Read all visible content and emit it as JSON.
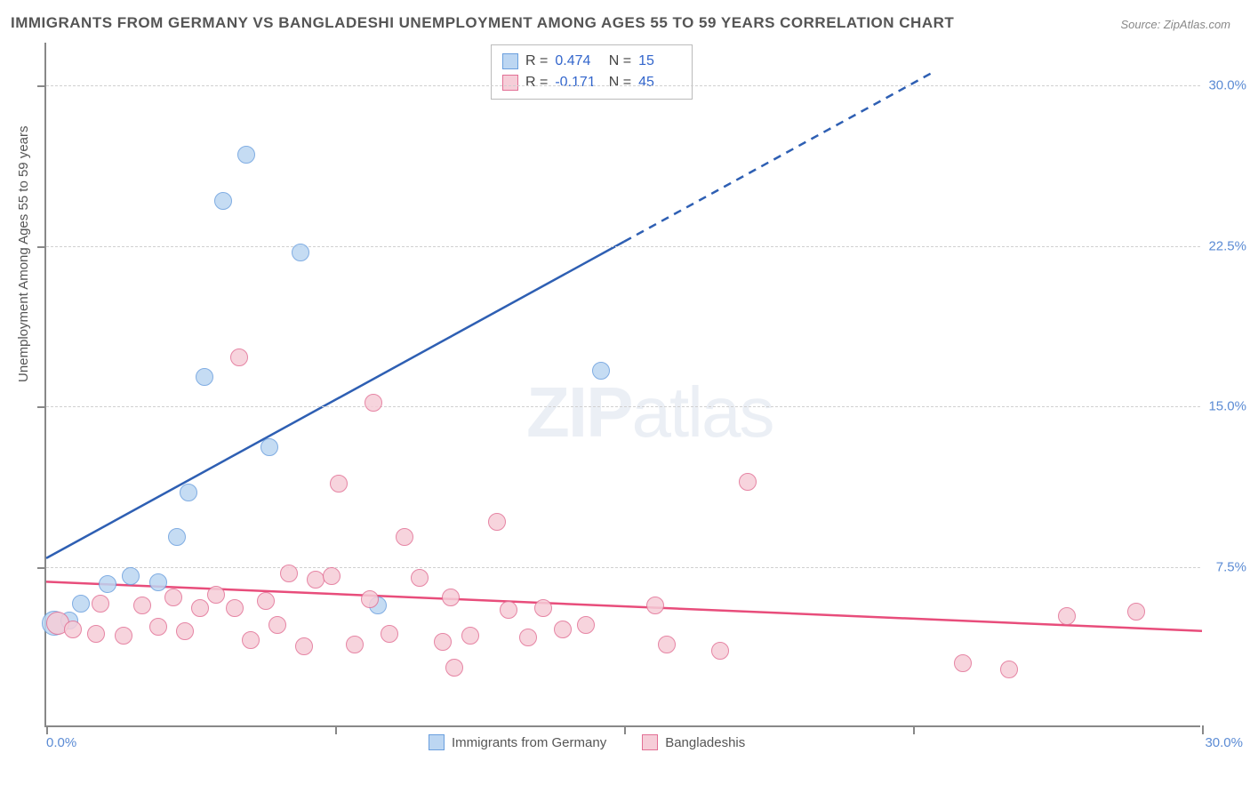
{
  "title": "IMMIGRANTS FROM GERMANY VS BANGLADESHI UNEMPLOYMENT AMONG AGES 55 TO 59 YEARS CORRELATION CHART",
  "source": "Source: ZipAtlas.com",
  "ylabel": "Unemployment Among Ages 55 to 59 years",
  "watermark": {
    "bold": "ZIP",
    "thin": "atlas"
  },
  "chart": {
    "type": "scatter",
    "xlim": [
      0,
      30
    ],
    "ylim": [
      0,
      32
    ],
    "ytick_labels": [
      "7.5%",
      "15.0%",
      "22.5%",
      "30.0%"
    ],
    "ytick_values": [
      7.5,
      15.0,
      22.5,
      30.0
    ],
    "xtick_min": "0.0%",
    "xtick_max": "30.0%",
    "vtick_values": [
      0,
      7.5,
      15.0,
      22.5,
      30.0
    ],
    "background_color": "#ffffff",
    "grid_color": "#d0d0d0",
    "axis_color": "#888888",
    "tick_text_color": "#5b8bd4"
  },
  "series": [
    {
      "name": "Immigrants from Germany",
      "color_fill": "#bcd6f2",
      "color_stroke": "#6a9fde",
      "marker_radius": 10,
      "R": "0.474",
      "N": "15",
      "trend": {
        "x1": 0,
        "y1": 7.9,
        "x2_solid": 15,
        "y2_solid": 22.7,
        "x2_dash": 23,
        "y2_dash": 30.6,
        "color": "#2e5fb3",
        "width": 2.5
      },
      "points": [
        {
          "x": 0.2,
          "y": 4.8,
          "r": 14
        },
        {
          "x": 0.6,
          "y": 4.9
        },
        {
          "x": 0.9,
          "y": 5.7
        },
        {
          "x": 1.6,
          "y": 6.6
        },
        {
          "x": 2.2,
          "y": 7.0
        },
        {
          "x": 2.9,
          "y": 6.7
        },
        {
          "x": 3.4,
          "y": 8.8
        },
        {
          "x": 3.7,
          "y": 10.9
        },
        {
          "x": 4.1,
          "y": 16.3
        },
        {
          "x": 4.6,
          "y": 24.5
        },
        {
          "x": 5.2,
          "y": 26.7
        },
        {
          "x": 5.8,
          "y": 13.0
        },
        {
          "x": 6.6,
          "y": 22.1
        },
        {
          "x": 8.6,
          "y": 5.6
        },
        {
          "x": 14.4,
          "y": 16.6
        }
      ]
    },
    {
      "name": "Bangladeshis",
      "color_fill": "#f6cdd8",
      "color_stroke": "#e27095",
      "marker_radius": 10,
      "R": "-0.171",
      "N": "45",
      "trend": {
        "x1": 0,
        "y1": 6.8,
        "x2_solid": 30,
        "y2_solid": 4.5,
        "color": "#e84d7b",
        "width": 2.5
      },
      "points": [
        {
          "x": 0.3,
          "y": 4.8,
          "r": 13
        },
        {
          "x": 0.7,
          "y": 4.5
        },
        {
          "x": 1.3,
          "y": 4.3
        },
        {
          "x": 1.4,
          "y": 5.7
        },
        {
          "x": 2.0,
          "y": 4.2
        },
        {
          "x": 2.5,
          "y": 5.6
        },
        {
          "x": 2.9,
          "y": 4.6
        },
        {
          "x": 3.3,
          "y": 6.0
        },
        {
          "x": 3.6,
          "y": 4.4
        },
        {
          "x": 4.0,
          "y": 5.5
        },
        {
          "x": 4.4,
          "y": 6.1
        },
        {
          "x": 4.9,
          "y": 5.5
        },
        {
          "x": 5.0,
          "y": 17.2
        },
        {
          "x": 5.3,
          "y": 4.0
        },
        {
          "x": 5.7,
          "y": 5.8
        },
        {
          "x": 6.0,
          "y": 4.7
        },
        {
          "x": 6.3,
          "y": 7.1
        },
        {
          "x": 6.7,
          "y": 3.7
        },
        {
          "x": 7.0,
          "y": 6.8
        },
        {
          "x": 7.4,
          "y": 7.0
        },
        {
          "x": 7.6,
          "y": 11.3
        },
        {
          "x": 8.0,
          "y": 3.8
        },
        {
          "x": 8.4,
          "y": 5.9
        },
        {
          "x": 8.5,
          "y": 15.1
        },
        {
          "x": 8.9,
          "y": 4.3
        },
        {
          "x": 9.3,
          "y": 8.8
        },
        {
          "x": 9.7,
          "y": 6.9
        },
        {
          "x": 10.3,
          "y": 3.9
        },
        {
          "x": 10.5,
          "y": 6.0
        },
        {
          "x": 10.6,
          "y": 2.7
        },
        {
          "x": 11.0,
          "y": 4.2
        },
        {
          "x": 11.7,
          "y": 9.5
        },
        {
          "x": 12.0,
          "y": 5.4
        },
        {
          "x": 12.5,
          "y": 4.1
        },
        {
          "x": 12.9,
          "y": 5.5
        },
        {
          "x": 13.4,
          "y": 4.5
        },
        {
          "x": 14.0,
          "y": 4.7
        },
        {
          "x": 15.8,
          "y": 5.6
        },
        {
          "x": 16.1,
          "y": 3.8
        },
        {
          "x": 17.5,
          "y": 3.5
        },
        {
          "x": 18.2,
          "y": 11.4
        },
        {
          "x": 23.8,
          "y": 2.9
        },
        {
          "x": 25.0,
          "y": 2.6
        },
        {
          "x": 26.5,
          "y": 5.1
        },
        {
          "x": 28.3,
          "y": 5.3
        }
      ]
    }
  ],
  "legend_bottom": [
    {
      "label": "Immigrants from Germany",
      "fill": "#bcd6f2",
      "stroke": "#6a9fde"
    },
    {
      "label": "Bangladeshis",
      "fill": "#f6cdd8",
      "stroke": "#e27095"
    }
  ]
}
